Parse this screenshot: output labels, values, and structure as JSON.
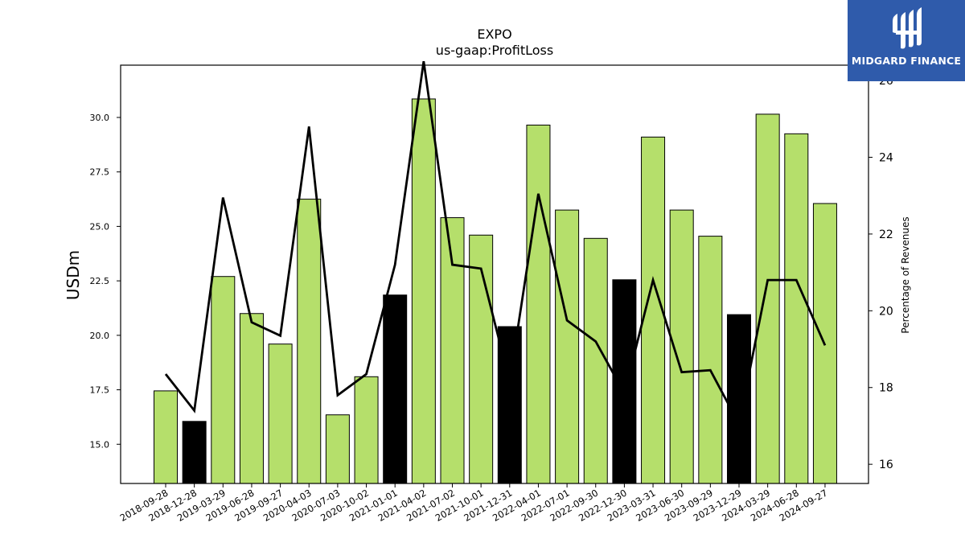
{
  "logo": {
    "text": "MIDGARD FINANCE",
    "background": "#2f5bab"
  },
  "chart_data": {
    "type": "bar",
    "title": "EXPO",
    "subtitle": "us-gaap:ProfitLoss",
    "ylabel": "USDm",
    "y2label": "Percentage of Revenues",
    "ylim": [
      13.2,
      32.4
    ],
    "y2lim": [
      15.5,
      26.4
    ],
    "yticks": [
      "15.0",
      "17.5",
      "20.0",
      "22.5",
      "25.0",
      "27.5",
      "30.0"
    ],
    "y2ticks": [
      "16",
      "18",
      "20",
      "22",
      "24",
      "26"
    ],
    "categories": [
      "2018-09-28",
      "2018-12-28",
      "2019-03-29",
      "2019-06-28",
      "2019-09-27",
      "2020-04-03",
      "2020-07-03",
      "2020-10-02",
      "2021-01-01",
      "2021-04-02",
      "2021-07-02",
      "2021-10-01",
      "2021-12-31",
      "2022-04-01",
      "2022-07-01",
      "2022-09-30",
      "2022-12-30",
      "2023-03-31",
      "2023-06-30",
      "2023-09-29",
      "2023-12-29",
      "2024-03-29",
      "2024-06-28",
      "2024-09-27"
    ],
    "values": [
      17.45,
      16.05,
      22.7,
      21.0,
      19.6,
      26.25,
      16.35,
      18.1,
      21.85,
      30.85,
      25.4,
      24.6,
      20.4,
      29.65,
      25.75,
      24.45,
      22.55,
      29.1,
      25.75,
      24.55,
      20.95,
      30.15,
      29.25,
      26.05
    ],
    "bar_colors": [
      "#b5df6b",
      "#000000",
      "#b5df6b",
      "#b5df6b",
      "#b5df6b",
      "#b5df6b",
      "#b5df6b",
      "#b5df6b",
      "#000000",
      "#b5df6b",
      "#b5df6b",
      "#b5df6b",
      "#000000",
      "#b5df6b",
      "#b5df6b",
      "#b5df6b",
      "#000000",
      "#b5df6b",
      "#b5df6b",
      "#b5df6b",
      "#000000",
      "#b5df6b",
      "#b5df6b",
      "#b5df6b"
    ],
    "line_values": [
      18.35,
      17.4,
      22.95,
      19.7,
      19.35,
      24.8,
      17.8,
      18.35,
      21.2,
      26.5,
      21.2,
      21.1,
      18.15,
      23.05,
      19.75,
      19.2,
      17.85,
      20.8,
      18.4,
      18.45,
      17.05,
      20.8,
      20.8,
      19.1
    ],
    "colors": {
      "bar": "#b5df6b",
      "bar_highlight": "#000000",
      "line": "#000000"
    },
    "grid": false,
    "legend": "none"
  }
}
